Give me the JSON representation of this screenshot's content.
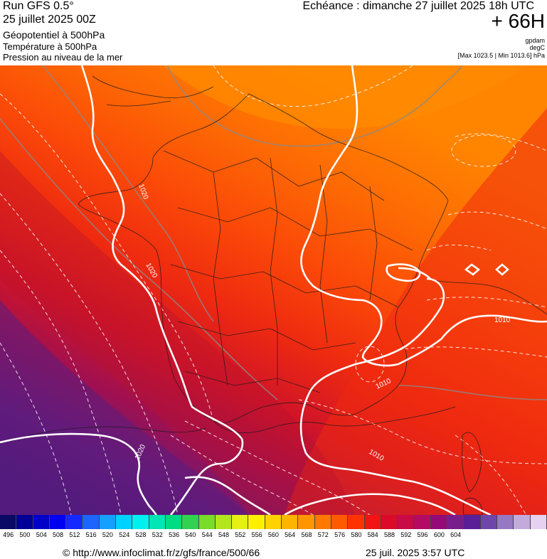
{
  "header": {
    "run": "Run GFS 0.5°",
    "run_date": "25 juillet 2025 00Z",
    "field_geopotential": "Géopotentiel à 500hPa",
    "field_temperature": "Température à 500hPa",
    "field_pressure": "Pression au niveau de la mer",
    "valid_time": "Echéance : dimanche 27 juillet 2025 18h UTC",
    "forecast_hour": "+ 66H",
    "unit_geopotential": "gpdam",
    "unit_temperature": "degC",
    "pressure_range": "[Max 1023.5 | Min 1013.6] hPa"
  },
  "map": {
    "isobar_labels": [
      "1020",
      "1020",
      "1010",
      "1010",
      "1020",
      "1010"
    ]
  },
  "colorbar": {
    "labels": [
      "496",
      "500",
      "504",
      "508",
      "512",
      "516",
      "520",
      "524",
      "528",
      "532",
      "536",
      "540",
      "544",
      "548",
      "552",
      "556",
      "560",
      "564",
      "568",
      "572",
      "576",
      "580",
      "584",
      "588",
      "592",
      "596",
      "600",
      "604"
    ],
    "colors": [
      "#0a0a64",
      "#000096",
      "#0000c8",
      "#0000f0",
      "#1428ff",
      "#1e64ff",
      "#14a0ff",
      "#00d2ff",
      "#00f0f0",
      "#00e6b4",
      "#00dc82",
      "#32d250",
      "#78dc28",
      "#b4e61e",
      "#e6f014",
      "#fff000",
      "#ffd200",
      "#ffb400",
      "#ff9600",
      "#ff7800",
      "#ff5a00",
      "#ff3200",
      "#f01414",
      "#dc0a28",
      "#c80a46",
      "#b40a64",
      "#960a78",
      "#781e8c",
      "#5a1e96",
      "#6e46aa",
      "#9678c3",
      "#c3aadc",
      "#e6d2f0"
    ]
  },
  "footer": {
    "url": "© http://www.infoclimat.fr/z/gfs/france/500/66",
    "generated": "25 juil. 2025  3:57 UTC"
  }
}
